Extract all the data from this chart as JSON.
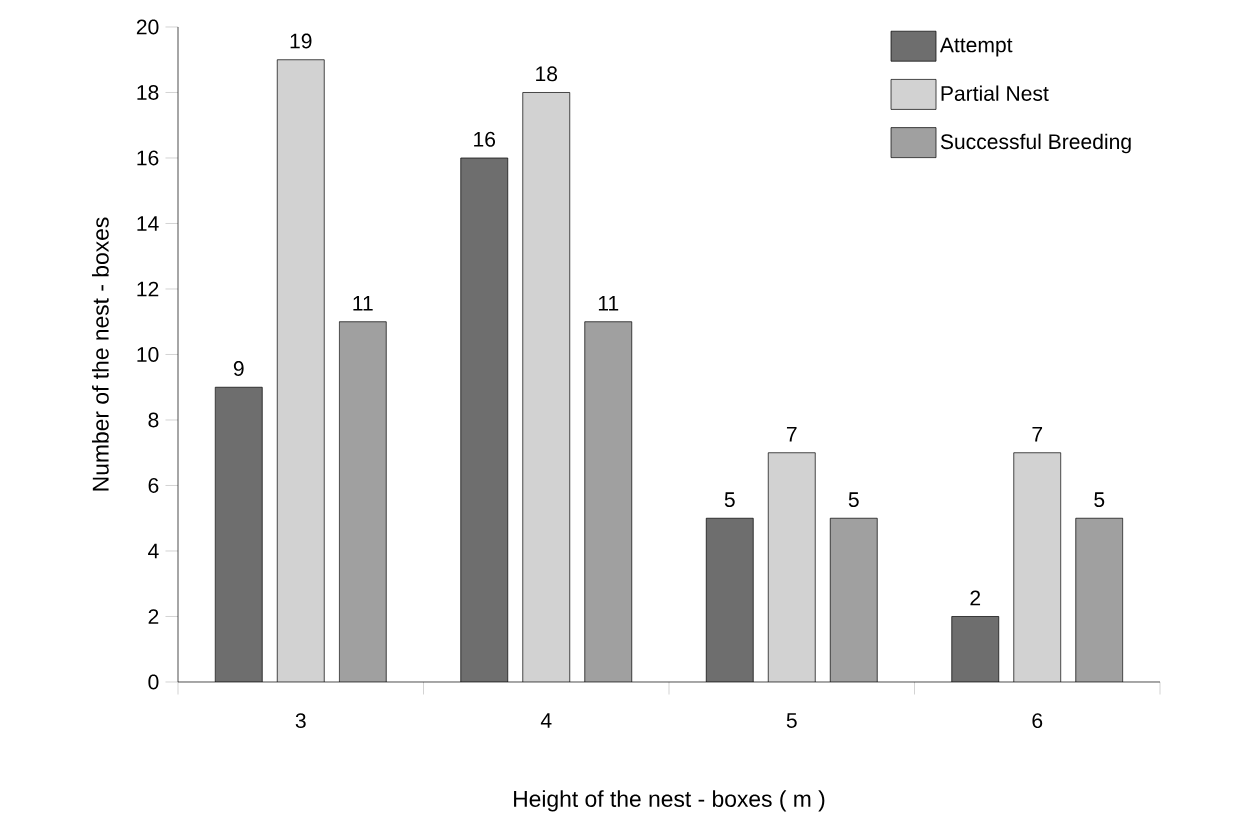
{
  "chart_data": {
    "type": "bar",
    "xlabel": "Height of the nest - boxes ( m )",
    "ylabel": "Number of the nest - boxes",
    "categories": [
      "3",
      "4",
      "5",
      "6"
    ],
    "series": [
      {
        "name": "Attempt",
        "color": "#6e6e6e",
        "values": [
          9,
          16,
          5,
          2
        ]
      },
      {
        "name": "Partial Nest",
        "color": "#d2d2d2",
        "values": [
          19,
          18,
          7,
          7
        ]
      },
      {
        "name": "Successful Breeding",
        "color": "#a0a0a0",
        "values": [
          11,
          11,
          5,
          5
        ]
      }
    ],
    "ylim": [
      0,
      20
    ],
    "yticks": [
      0,
      2,
      4,
      6,
      8,
      10,
      12,
      14,
      16,
      18,
      20
    ],
    "data_labels": true,
    "legend": "top right",
    "grid": false
  }
}
